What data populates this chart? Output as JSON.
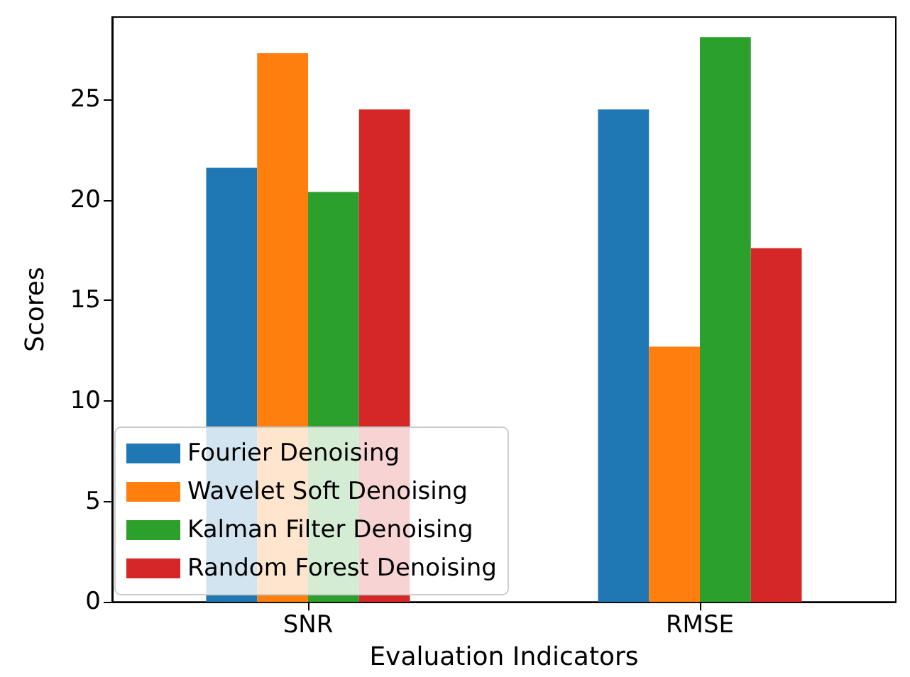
{
  "chart_data": {
    "type": "bar",
    "xlabel": "Evaluation Indicators",
    "ylabel": "Scores",
    "categories": [
      "SNR",
      "RMSE"
    ],
    "series": [
      {
        "name": "Fourier Denoising",
        "color": "#1f77b4",
        "values": [
          21.6,
          24.5
        ]
      },
      {
        "name": "Wavelet Soft Denoising",
        "color": "#ff7f0e",
        "values": [
          27.3,
          12.7
        ]
      },
      {
        "name": "Kalman Filter Denoising",
        "color": "#2ca02c",
        "values": [
          20.4,
          28.1
        ]
      },
      {
        "name": "Random Forest Denoising",
        "color": "#d62728",
        "values": [
          24.5,
          17.6
        ]
      }
    ],
    "ylim": [
      0,
      29.1
    ],
    "yticks": [
      0,
      5,
      10,
      15,
      20,
      25
    ],
    "grid": false,
    "legend": "bottom left"
  }
}
